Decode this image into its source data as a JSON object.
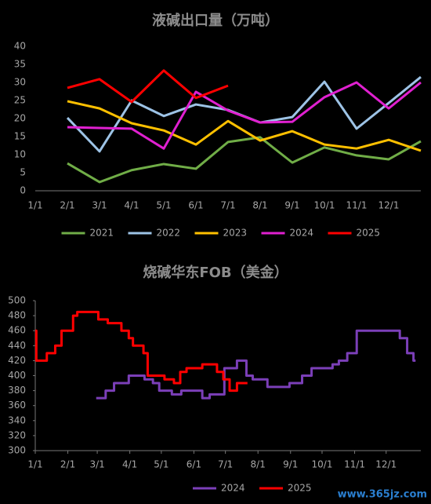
{
  "chart_data": [
    {
      "type": "line",
      "title": "液碱出口量（万吨）",
      "categories": [
        "1/1",
        "2/1",
        "3/1",
        "4/1",
        "5/1",
        "6/1",
        "7/1",
        "8/1",
        "9/1",
        "10/1",
        "11/1",
        "12/1",
        null
      ],
      "ylim": [
        0,
        40
      ],
      "yticks": [
        0,
        5,
        10,
        15,
        20,
        25,
        30,
        35,
        40
      ],
      "legend": "bottom",
      "series": [
        {
          "name": "2021",
          "color": "#70ad47",
          "values": [
            null,
            7.6,
            2.4,
            5.7,
            7.4,
            6.1,
            13.5,
            14.8,
            7.8,
            12,
            9.8,
            8.7,
            13.7
          ]
        },
        {
          "name": "2022",
          "color": "#9dc3e6",
          "values": [
            null,
            20.2,
            10.9,
            25,
            20.7,
            23.9,
            22.4,
            18.9,
            20.4,
            30.2,
            17.2,
            24.3,
            31.5
          ]
        },
        {
          "name": "2023",
          "color": "#ffc000",
          "values": [
            null,
            24.8,
            22.8,
            18.7,
            16.7,
            12.8,
            19.3,
            13.9,
            16.5,
            12.8,
            11.7,
            14.1,
            11.1
          ]
        },
        {
          "name": "2024",
          "color": "#e020d0",
          "values": [
            null,
            17.6,
            17.4,
            17.2,
            11.7,
            27.4,
            22.2,
            18.9,
            19.1,
            25.9,
            30,
            22.8,
            30
          ]
        },
        {
          "name": "2025",
          "color": "#ff0000",
          "values": [
            null,
            28.5,
            30.9,
            24.6,
            33.3,
            25.7,
            29.1,
            null,
            null,
            null,
            null,
            null,
            null
          ]
        }
      ]
    },
    {
      "type": "line",
      "title": "烧碱华东FOB（美金）",
      "step": true,
      "xlim": [
        0,
        367
      ],
      "xticks": [
        {
          "value": 0,
          "label": "1/1"
        },
        {
          "value": 31,
          "label": "2/1"
        },
        {
          "value": 59,
          "label": "3/1"
        },
        {
          "value": 90,
          "label": "4/1"
        },
        {
          "value": 120,
          "label": "5/1"
        },
        {
          "value": 151,
          "label": "6/1"
        },
        {
          "value": 181,
          "label": "7/1"
        },
        {
          "value": 212,
          "label": "8/1"
        },
        {
          "value": 243,
          "label": "9/1"
        },
        {
          "value": 273,
          "label": "10/1"
        },
        {
          "value": 304,
          "label": "11/1"
        },
        {
          "value": 334,
          "label": "12/1"
        }
      ],
      "ylim": [
        300,
        500
      ],
      "yticks": [
        300,
        320,
        340,
        360,
        380,
        400,
        420,
        440,
        460,
        480,
        500
      ],
      "legend": "bottom",
      "series": [
        {
          "name": "2024",
          "color": "#7b3fb8",
          "x": [
            58,
            67,
            75,
            89,
            104,
            112,
            118,
            130,
            139,
            159,
            166,
            180,
            192,
            201,
            207,
            221,
            242,
            254,
            263,
            283,
            289,
            297,
            306,
            347,
            354,
            360,
            362
          ],
          "values": [
            370,
            380,
            390,
            400,
            395,
            390,
            380,
            375,
            380,
            370,
            375,
            410,
            420,
            400,
            395,
            385,
            390,
            400,
            410,
            415,
            420,
            430,
            460,
            450,
            430,
            420,
            420
          ]
        },
        {
          "name": "2025",
          "color": "#ff0000",
          "x": [
            0,
            1,
            11,
            19,
            25,
            36,
            40,
            60,
            69,
            82,
            89,
            93,
            103,
            107,
            123,
            132,
            138,
            144,
            159,
            173,
            179,
            185,
            192,
            202
          ],
          "values": [
            460,
            420,
            430,
            440,
            460,
            480,
            485,
            475,
            470,
            460,
            450,
            440,
            430,
            400,
            395,
            390,
            405,
            410,
            415,
            405,
            395,
            380,
            390,
            390
          ]
        }
      ]
    }
  ],
  "watermark": "www.365jz.com"
}
